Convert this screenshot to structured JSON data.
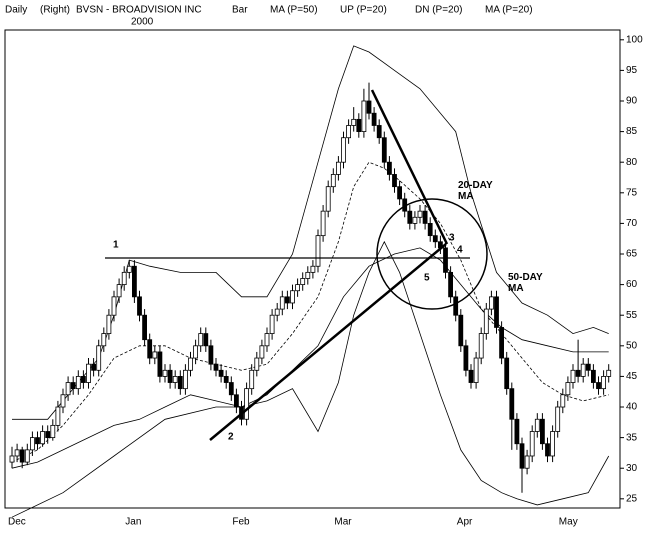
{
  "chart_data": {
    "type": "candlestick",
    "period": "Daily",
    "axis_side": "(Right)",
    "title": "BVSN - BROADVISION INC",
    "subtitle": "2000",
    "style": "Bar",
    "annotations": [
      "1",
      "2",
      "3",
      "4",
      "5",
      "20-DAY MA",
      "50-DAY MA"
    ],
    "ylim": [
      23.5,
      101.6
    ],
    "yticks": [
      25,
      30,
      35,
      40,
      45,
      50,
      55,
      60,
      65,
      70,
      75,
      80,
      85,
      90,
      95,
      100
    ],
    "categories": [
      "Dec",
      null,
      null,
      null,
      null,
      null,
      null,
      null,
      null,
      null,
      null,
      null,
      null,
      null,
      null,
      null,
      null,
      null,
      null,
      null,
      null,
      null,
      null,
      "Jan",
      null,
      null,
      null,
      null,
      null,
      null,
      null,
      null,
      null,
      null,
      null,
      null,
      null,
      null,
      null,
      null,
      null,
      null,
      null,
      null,
      "Feb",
      null,
      null,
      null,
      null,
      null,
      null,
      null,
      null,
      null,
      null,
      null,
      null,
      null,
      null,
      null,
      null,
      null,
      null,
      null,
      "Mar",
      null,
      null,
      null,
      null,
      null,
      null,
      null,
      null,
      null,
      null,
      null,
      null,
      null,
      null,
      null,
      null,
      null,
      null,
      null,
      null,
      null,
      null,
      null,
      "Apr",
      null,
      null,
      null,
      null,
      null,
      null,
      null,
      null,
      null,
      null,
      null,
      null,
      null,
      null,
      null,
      null,
      null,
      null,
      null,
      "May",
      null,
      null,
      null,
      null,
      null,
      null,
      null,
      null,
      null
    ],
    "ohlc": [
      [
        31,
        33.5,
        30,
        32
      ],
      [
        32,
        34,
        31,
        33
      ],
      [
        33,
        33.5,
        30,
        31
      ],
      [
        31,
        34,
        30.5,
        33
      ],
      [
        33,
        36,
        32,
        35
      ],
      [
        35,
        36,
        33,
        34
      ],
      [
        34,
        37,
        33.5,
        36
      ],
      [
        36,
        37,
        34,
        35
      ],
      [
        35,
        38,
        34.5,
        37
      ],
      [
        37,
        41,
        36,
        40
      ],
      [
        40,
        43,
        39,
        42
      ],
      [
        42,
        45,
        41,
        44
      ],
      [
        44,
        45,
        42,
        43
      ],
      [
        43,
        46,
        42,
        45
      ],
      [
        45,
        46,
        43,
        44
      ],
      [
        44,
        48,
        43,
        47
      ],
      [
        47,
        48,
        45,
        46
      ],
      [
        46,
        51,
        45,
        50
      ],
      [
        50,
        53,
        49,
        52
      ],
      [
        52,
        56,
        51,
        55
      ],
      [
        55,
        59,
        54,
        58
      ],
      [
        58,
        61,
        57,
        60
      ],
      [
        60,
        63,
        59,
        62
      ],
      [
        62,
        64,
        61,
        63
      ],
      [
        63,
        64,
        57,
        58
      ],
      [
        58,
        59,
        54,
        55
      ],
      [
        55,
        56,
        50,
        51
      ],
      [
        51,
        52,
        47,
        48
      ],
      [
        48,
        50,
        47,
        49
      ],
      [
        49,
        50,
        44,
        45
      ],
      [
        45,
        47,
        44,
        46
      ],
      [
        46,
        47,
        43,
        44
      ],
      [
        44,
        46,
        43,
        45
      ],
      [
        45,
        46,
        42,
        43
      ],
      [
        43,
        47,
        42,
        46
      ],
      [
        46,
        49,
        45,
        48
      ],
      [
        48,
        51,
        47,
        50
      ],
      [
        50,
        53,
        49,
        52
      ],
      [
        52,
        53,
        49,
        50
      ],
      [
        50,
        51,
        46,
        47
      ],
      [
        47,
        48,
        45,
        46
      ],
      [
        46,
        47,
        44,
        45
      ],
      [
        45,
        46,
        43,
        44
      ],
      [
        44,
        45,
        41,
        42
      ],
      [
        42,
        43,
        39,
        40
      ],
      [
        40,
        41,
        37,
        38
      ],
      [
        38,
        44,
        37,
        43
      ],
      [
        43,
        47,
        42,
        46
      ],
      [
        46,
        49,
        45,
        48
      ],
      [
        48,
        51,
        47,
        50
      ],
      [
        50,
        53,
        49,
        52
      ],
      [
        52,
        56,
        51,
        55
      ],
      [
        55,
        57,
        54,
        56
      ],
      [
        56,
        59,
        55,
        58
      ],
      [
        58,
        59,
        56,
        57
      ],
      [
        57,
        60,
        56,
        59
      ],
      [
        59,
        61,
        58,
        60
      ],
      [
        60,
        62,
        59,
        61
      ],
      [
        61,
        63,
        60,
        62
      ],
      [
        62,
        64,
        61,
        63
      ],
      [
        63,
        69,
        62,
        68
      ],
      [
        68,
        73,
        67,
        72
      ],
      [
        72,
        77,
        71,
        76
      ],
      [
        76,
        79,
        75,
        78
      ],
      [
        78,
        81,
        77,
        80
      ],
      [
        80,
        85,
        79,
        84
      ],
      [
        84,
        87,
        83,
        86
      ],
      [
        86,
        89,
        85,
        87
      ],
      [
        87,
        88,
        84,
        85
      ],
      [
        85,
        92,
        84,
        90
      ],
      [
        90,
        93,
        87,
        88
      ],
      [
        88,
        89,
        85,
        86
      ],
      [
        86,
        87,
        83,
        84
      ],
      [
        84,
        85,
        79,
        80
      ],
      [
        80,
        81,
        77,
        78
      ],
      [
        78,
        79,
        75,
        76
      ],
      [
        76,
        77,
        73,
        74
      ],
      [
        74,
        75,
        71,
        72
      ],
      [
        72,
        73,
        69,
        70
      ],
      [
        70,
        72,
        69,
        71
      ],
      [
        71,
        73,
        70,
        72
      ],
      [
        72,
        73,
        69,
        70
      ],
      [
        70,
        71,
        67,
        68
      ],
      [
        68,
        69,
        66,
        67
      ],
      [
        67,
        68,
        65,
        66
      ],
      [
        66,
        67,
        61,
        62
      ],
      [
        62,
        63,
        57,
        58
      ],
      [
        58,
        59,
        54,
        55
      ],
      [
        55,
        56,
        49,
        50
      ],
      [
        50,
        51,
        45,
        46
      ],
      [
        46,
        47,
        43,
        44
      ],
      [
        44,
        49,
        43,
        48
      ],
      [
        48,
        53,
        47,
        52
      ],
      [
        52,
        57,
        51,
        56
      ],
      [
        56,
        59,
        55,
        58
      ],
      [
        58,
        59,
        52,
        53
      ],
      [
        53,
        54,
        47,
        48
      ],
      [
        48,
        49,
        42,
        43
      ],
      [
        43,
        44,
        33,
        38
      ],
      [
        38,
        39,
        33,
        34
      ],
      [
        34,
        35,
        26,
        30
      ],
      [
        30,
        33,
        29,
        32
      ],
      [
        32,
        37,
        31,
        36
      ],
      [
        36,
        39,
        35,
        38
      ],
      [
        38,
        39,
        33,
        34
      ],
      [
        34,
        35,
        31,
        32
      ],
      [
        32,
        37,
        31,
        36
      ],
      [
        36,
        41,
        35,
        40
      ],
      [
        40,
        43,
        39,
        42
      ],
      [
        42,
        45,
        41,
        44
      ],
      [
        44,
        47,
        43,
        46
      ],
      [
        46,
        51,
        44,
        45
      ],
      [
        45,
        48,
        44,
        47
      ],
      [
        47,
        48,
        45,
        46
      ],
      [
        46,
        47,
        43,
        44
      ],
      [
        44,
        45,
        42,
        43
      ],
      [
        43,
        46,
        42,
        45
      ],
      [
        45,
        47,
        44,
        46
      ]
    ],
    "lines": [
      {
        "name": "MA (P=50)",
        "dashed": false,
        "x": [
          0,
          10,
          20,
          30,
          40,
          45,
          50,
          55,
          60,
          65,
          70,
          75,
          80,
          84,
          88,
          92,
          96,
          100,
          105,
          110,
          117
        ],
        "values": [
          22,
          26,
          32,
          38,
          40,
          40,
          42,
          46,
          50,
          58,
          63,
          65,
          66,
          64,
          60,
          56,
          53,
          51,
          50,
          49,
          49
        ]
      },
      {
        "name": "UP (P=20)",
        "dashed": false,
        "x": [
          0,
          7,
          17,
          20,
          23,
          27,
          33,
          40,
          45,
          50,
          55,
          60,
          64,
          67,
          70,
          75,
          80,
          87,
          90,
          95,
          100,
          105,
          110,
          114,
          117
        ],
        "values": [
          38,
          38,
          48,
          55,
          64,
          63,
          62,
          62,
          58,
          58,
          65,
          80,
          92,
          99,
          98,
          95,
          92,
          85,
          75,
          62,
          57,
          55,
          52,
          53,
          52
        ]
      },
      {
        "name": "DN (P=20)",
        "dashed": false,
        "x": [
          0,
          5,
          10,
          15,
          20,
          25,
          30,
          35,
          40,
          45,
          50,
          55,
          60,
          64,
          67,
          70,
          73,
          76,
          80,
          84,
          88,
          92,
          96,
          99,
          103,
          108,
          113,
          117
        ],
        "values": [
          30,
          31,
          33,
          35,
          37,
          38,
          40,
          42,
          41,
          40,
          41,
          43,
          36,
          44,
          55,
          62,
          67,
          62,
          52,
          42,
          33,
          28,
          26,
          25,
          24,
          25,
          26,
          32
        ]
      },
      {
        "name": "MA (P=20)",
        "dashed": true,
        "x": [
          0,
          5,
          10,
          15,
          20,
          25,
          30,
          35,
          40,
          45,
          50,
          55,
          60,
          64,
          67,
          70,
          73,
          76,
          80,
          84,
          88,
          92,
          96,
          100,
          104,
          108,
          112,
          117
        ],
        "values": [
          31,
          33,
          37,
          42,
          48,
          50,
          50,
          48,
          47,
          46,
          47,
          52,
          58,
          67,
          76,
          80,
          79,
          77,
          74,
          70,
          64,
          56,
          52,
          48,
          44,
          42,
          41,
          42
        ]
      }
    ]
  }
}
